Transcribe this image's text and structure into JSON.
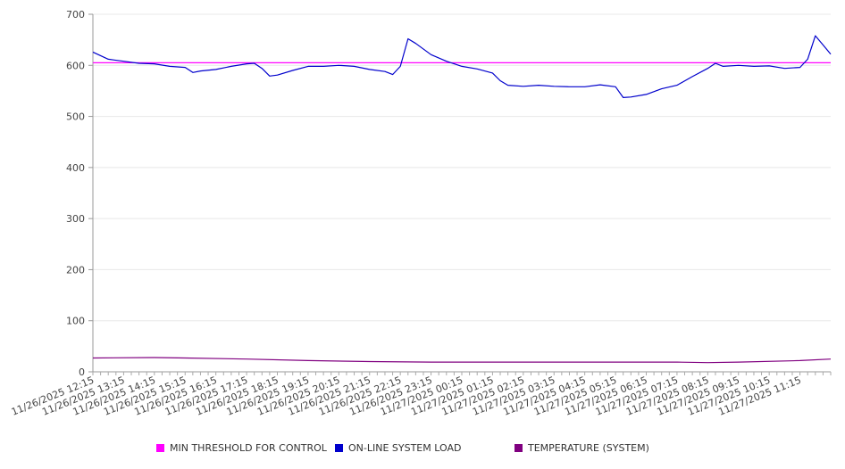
{
  "chart_data": {
    "type": "line",
    "title": "",
    "xlabel": "",
    "ylabel": "",
    "ylim": [
      0,
      700
    ],
    "yticks": [
      0,
      100,
      200,
      300,
      400,
      500,
      600,
      700
    ],
    "grid": true,
    "legend_placement": "bottom",
    "x_tick_labels": [
      "11/26/2025 12:15",
      "11/26/2025 13:15",
      "11/26/2025 14:15",
      "11/26/2025 15:15",
      "11/26/2025 16:15",
      "11/26/2025 17:15",
      "11/26/2025 18:15",
      "11/26/2025 19:15",
      "11/26/2025 20:15",
      "11/26/2025 21:15",
      "11/26/2025 22:15",
      "11/26/2025 23:15",
      "11/27/2025 00:15",
      "11/27/2025 01:15",
      "11/27/2025 02:15",
      "11/27/2025 03:15",
      "11/27/2025 04:15",
      "11/27/2025 05:15",
      "11/27/2025 06:15",
      "11/27/2025 07:15",
      "11/27/2025 08:15",
      "11/27/2025 09:15",
      "11/27/2025 10:15",
      "11/27/2025 11:15"
    ],
    "x_start": "11/26/2025 12:15",
    "x_end": "11/27/2025 12:15",
    "series": [
      {
        "name": "MIN THRESHOLD FOR CONTROL",
        "color": "#ff00ff",
        "points": [
          [
            "11/26/2025 12:15",
            605
          ],
          [
            "11/27/2025 12:15",
            605
          ]
        ]
      },
      {
        "name": "ON-LINE SYSTEM LOAD",
        "color": "#0000cc",
        "points": [
          [
            "11/26/2025 12:15",
            626
          ],
          [
            "11/26/2025 12:45",
            612
          ],
          [
            "11/26/2025 13:15",
            608
          ],
          [
            "11/26/2025 13:45",
            604
          ],
          [
            "11/26/2025 14:15",
            603
          ],
          [
            "11/26/2025 14:45",
            598
          ],
          [
            "11/26/2025 15:15",
            596
          ],
          [
            "11/26/2025 15:30",
            586
          ],
          [
            "11/26/2025 15:45",
            589
          ],
          [
            "11/26/2025 16:15",
            592
          ],
          [
            "11/26/2025 16:45",
            598
          ],
          [
            "11/26/2025 17:15",
            603
          ],
          [
            "11/26/2025 17:30",
            604
          ],
          [
            "11/26/2025 17:45",
            594
          ],
          [
            "11/26/2025 18:00",
            579
          ],
          [
            "11/26/2025 18:15",
            581
          ],
          [
            "11/26/2025 18:45",
            590
          ],
          [
            "11/26/2025 19:15",
            598
          ],
          [
            "11/26/2025 19:45",
            598
          ],
          [
            "11/26/2025 20:15",
            600
          ],
          [
            "11/26/2025 20:45",
            598
          ],
          [
            "11/26/2025 21:15",
            592
          ],
          [
            "11/26/2025 21:45",
            588
          ],
          [
            "11/26/2025 22:00",
            582
          ],
          [
            "11/26/2025 22:15",
            598
          ],
          [
            "11/26/2025 22:30",
            652
          ],
          [
            "11/26/2025 22:45",
            643
          ],
          [
            "11/26/2025 23:15",
            621
          ],
          [
            "11/26/2025 23:45",
            608
          ],
          [
            "11/27/2025 00:15",
            598
          ],
          [
            "11/27/2025 00:45",
            593
          ],
          [
            "11/27/2025 01:15",
            585
          ],
          [
            "11/27/2025 01:30",
            570
          ],
          [
            "11/27/2025 01:45",
            561
          ],
          [
            "11/27/2025 02:15",
            559
          ],
          [
            "11/27/2025 02:45",
            561
          ],
          [
            "11/27/2025 03:15",
            559
          ],
          [
            "11/27/2025 03:45",
            558
          ],
          [
            "11/27/2025 04:15",
            558
          ],
          [
            "11/27/2025 04:45",
            562
          ],
          [
            "11/27/2025 05:15",
            558
          ],
          [
            "11/27/2025 05:30",
            537
          ],
          [
            "11/27/2025 05:45",
            538
          ],
          [
            "11/27/2025 06:15",
            543
          ],
          [
            "11/27/2025 06:45",
            554
          ],
          [
            "11/27/2025 07:15",
            561
          ],
          [
            "11/27/2025 07:45",
            578
          ],
          [
            "11/27/2025 08:15",
            594
          ],
          [
            "11/27/2025 08:30",
            604
          ],
          [
            "11/27/2025 08:45",
            598
          ],
          [
            "11/27/2025 09:15",
            600
          ],
          [
            "11/27/2025 09:45",
            598
          ],
          [
            "11/27/2025 10:15",
            599
          ],
          [
            "11/27/2025 10:45",
            594
          ],
          [
            "11/27/2025 11:15",
            596
          ],
          [
            "11/27/2025 11:30",
            612
          ],
          [
            "11/27/2025 11:45",
            658
          ],
          [
            "11/27/2025 12:00",
            640
          ],
          [
            "11/27/2025 12:15",
            622
          ]
        ]
      },
      {
        "name": "TEMPERATURE (SYSTEM)",
        "color": "#800080",
        "points": [
          [
            "11/26/2025 12:15",
            27
          ],
          [
            "11/26/2025 14:15",
            28
          ],
          [
            "11/26/2025 15:15",
            27
          ],
          [
            "11/26/2025 17:15",
            25
          ],
          [
            "11/26/2025 19:15",
            22
          ],
          [
            "11/26/2025 21:15",
            20
          ],
          [
            "11/26/2025 23:15",
            19
          ],
          [
            "11/27/2025 03:15",
            19
          ],
          [
            "11/27/2025 07:15",
            19
          ],
          [
            "11/27/2025 08:15",
            18
          ],
          [
            "11/27/2025 09:15",
            19
          ],
          [
            "11/27/2025 11:15",
            22
          ],
          [
            "11/27/2025 12:15",
            25
          ]
        ]
      }
    ]
  }
}
